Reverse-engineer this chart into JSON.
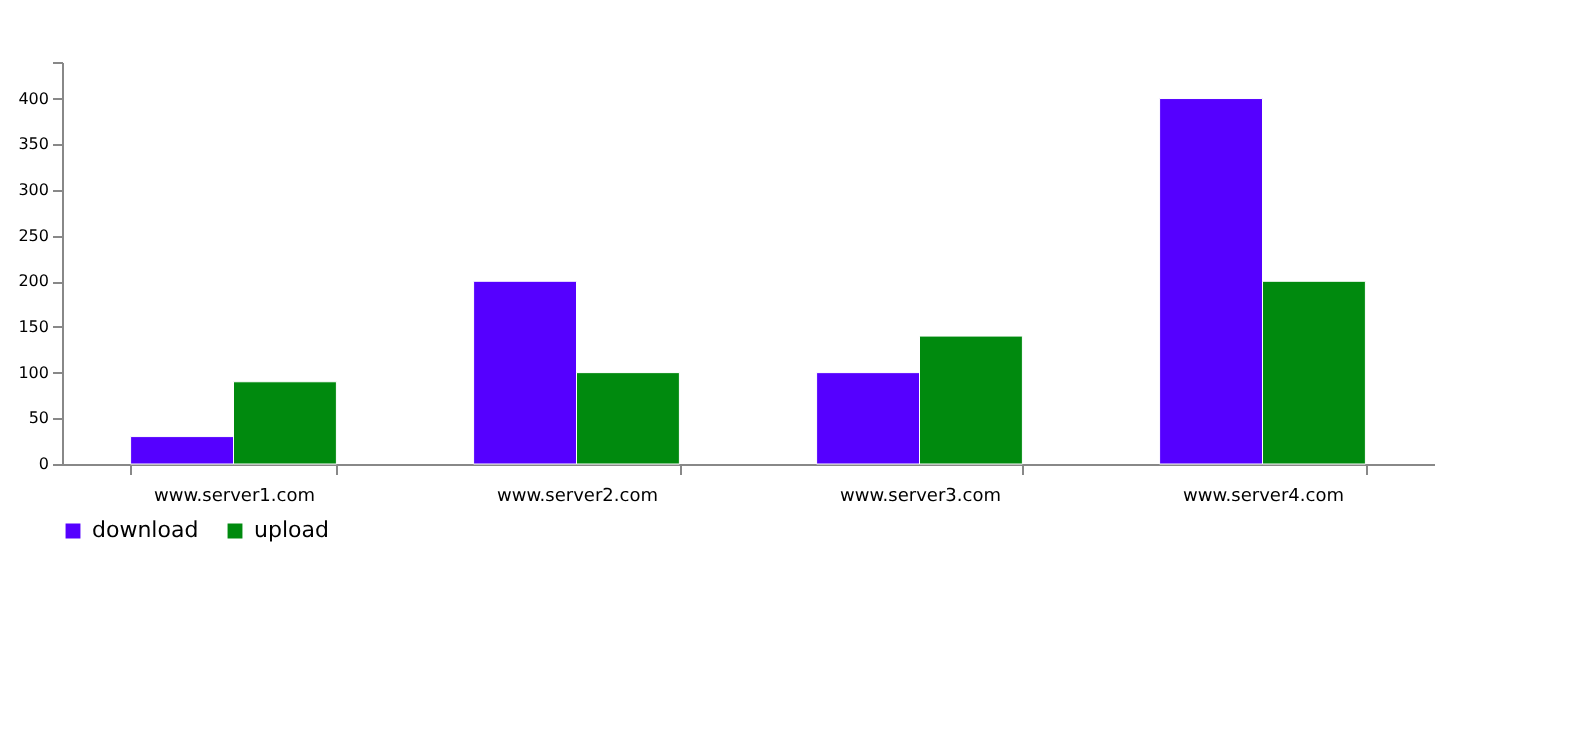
{
  "chart_data": {
    "type": "bar",
    "categories": [
      "www.server1.com",
      "www.server2.com",
      "www.server3.com",
      "www.server4.com"
    ],
    "series": [
      {
        "name": "download",
        "color": "#5500ff",
        "values": [
          30,
          200,
          100,
          400
        ]
      },
      {
        "name": "upload",
        "color": "#008a0e",
        "values": [
          90,
          100,
          140,
          200
        ]
      }
    ],
    "ylim": [
      0,
      440
    ],
    "yticks": [
      0,
      50,
      100,
      150,
      200,
      250,
      300,
      350,
      400,
      {
        "value": 440,
        "label": null
      }
    ],
    "grid": false,
    "legend": "bottom"
  }
}
